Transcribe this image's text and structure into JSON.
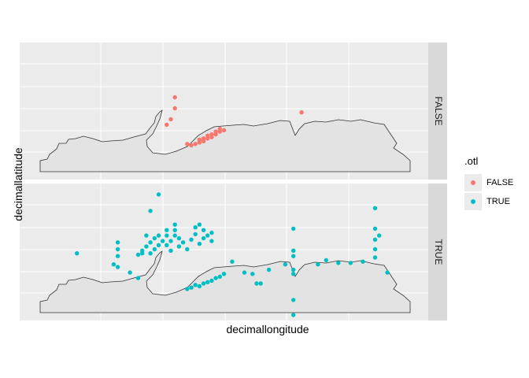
{
  "chart_data": {
    "type": "scatter",
    "title": "",
    "xlabel": "decimallongitude",
    "ylabel": "decimallatitude",
    "xlim": [
      0,
      100
    ],
    "ylim": [
      0,
      100
    ],
    "x_ticks_shown": false,
    "y_ticks_shown": false,
    "grid": true,
    "facet_by": ".otl",
    "legend_position": "right",
    "legend": {
      "title": ".otl",
      "entries": [
        {
          "label": "FALSE",
          "color": "#F8766D"
        },
        {
          "label": "TRUE",
          "color": "#00BFC4"
        }
      ]
    },
    "panels": [
      {
        "strip": "FALSE",
        "color": "#F8766D",
        "points": [
          {
            "x": 38,
            "y": 60
          },
          {
            "x": 38,
            "y": 52
          },
          {
            "x": 37,
            "y": 44
          },
          {
            "x": 36,
            "y": 40
          },
          {
            "x": 69,
            "y": 49
          },
          {
            "x": 41,
            "y": 26
          },
          {
            "x": 42,
            "y": 25
          },
          {
            "x": 43,
            "y": 26
          },
          {
            "x": 44,
            "y": 27
          },
          {
            "x": 44,
            "y": 29
          },
          {
            "x": 45,
            "y": 28
          },
          {
            "x": 45,
            "y": 30
          },
          {
            "x": 46,
            "y": 30
          },
          {
            "x": 46,
            "y": 32
          },
          {
            "x": 47,
            "y": 31
          },
          {
            "x": 47,
            "y": 33
          },
          {
            "x": 48,
            "y": 33
          },
          {
            "x": 48,
            "y": 35
          },
          {
            "x": 49,
            "y": 35
          },
          {
            "x": 49,
            "y": 37
          },
          {
            "x": 50,
            "y": 36
          }
        ]
      },
      {
        "strip": "TRUE",
        "color": "#00BFC4",
        "points": [
          {
            "x": 34,
            "y": 92
          },
          {
            "x": 32,
            "y": 80
          },
          {
            "x": 31,
            "y": 62
          },
          {
            "x": 32,
            "y": 57
          },
          {
            "x": 33,
            "y": 60
          },
          {
            "x": 30,
            "y": 51
          },
          {
            "x": 31,
            "y": 54
          },
          {
            "x": 32,
            "y": 49
          },
          {
            "x": 33,
            "y": 52
          },
          {
            "x": 34,
            "y": 55
          },
          {
            "x": 35,
            "y": 58
          },
          {
            "x": 36,
            "y": 62
          },
          {
            "x": 36,
            "y": 55
          },
          {
            "x": 37,
            "y": 51
          },
          {
            "x": 37,
            "y": 58
          },
          {
            "x": 38,
            "y": 62
          },
          {
            "x": 38,
            "y": 66
          },
          {
            "x": 39,
            "y": 54
          },
          {
            "x": 39,
            "y": 60
          },
          {
            "x": 40,
            "y": 57
          },
          {
            "x": 41,
            "y": 52
          },
          {
            "x": 42,
            "y": 59
          },
          {
            "x": 43,
            "y": 63
          },
          {
            "x": 44,
            "y": 70
          },
          {
            "x": 44,
            "y": 56
          },
          {
            "x": 45,
            "y": 66
          },
          {
            "x": 45,
            "y": 60
          },
          {
            "x": 46,
            "y": 62
          },
          {
            "x": 47,
            "y": 58
          },
          {
            "x": 47,
            "y": 64
          },
          {
            "x": 43,
            "y": 68
          },
          {
            "x": 38,
            "y": 70
          },
          {
            "x": 36,
            "y": 66
          },
          {
            "x": 34,
            "y": 62
          },
          {
            "x": 29,
            "y": 48
          },
          {
            "x": 30,
            "y": 49
          },
          {
            "x": 24,
            "y": 57
          },
          {
            "x": 24,
            "y": 52
          },
          {
            "x": 24,
            "y": 47
          },
          {
            "x": 23,
            "y": 41
          },
          {
            "x": 24,
            "y": 39
          },
          {
            "x": 27,
            "y": 35
          },
          {
            "x": 29,
            "y": 31
          },
          {
            "x": 14,
            "y": 49
          },
          {
            "x": 42,
            "y": 24
          },
          {
            "x": 43,
            "y": 26
          },
          {
            "x": 44,
            "y": 25
          },
          {
            "x": 45,
            "y": 27
          },
          {
            "x": 46,
            "y": 28
          },
          {
            "x": 47,
            "y": 29
          },
          {
            "x": 48,
            "y": 31
          },
          {
            "x": 49,
            "y": 32
          },
          {
            "x": 50,
            "y": 34
          },
          {
            "x": 41,
            "y": 23
          },
          {
            "x": 52,
            "y": 43
          },
          {
            "x": 55,
            "y": 35
          },
          {
            "x": 57,
            "y": 34
          },
          {
            "x": 58,
            "y": 27
          },
          {
            "x": 59,
            "y": 27
          },
          {
            "x": 61,
            "y": 37
          },
          {
            "x": 65,
            "y": 41
          },
          {
            "x": 67,
            "y": 67
          },
          {
            "x": 67,
            "y": 51
          },
          {
            "x": 67,
            "y": 47
          },
          {
            "x": 67,
            "y": 37
          },
          {
            "x": 67,
            "y": 34
          },
          {
            "x": 67,
            "y": 15
          },
          {
            "x": 67,
            "y": 4
          },
          {
            "x": 73,
            "y": 41
          },
          {
            "x": 75,
            "y": 44
          },
          {
            "x": 78,
            "y": 42
          },
          {
            "x": 81,
            "y": 42
          },
          {
            "x": 84,
            "y": 43
          },
          {
            "x": 87,
            "y": 82
          },
          {
            "x": 87,
            "y": 67
          },
          {
            "x": 87,
            "y": 59
          },
          {
            "x": 88,
            "y": 62
          },
          {
            "x": 87,
            "y": 52
          },
          {
            "x": 87,
            "y": 46
          },
          {
            "x": 90,
            "y": 35
          }
        ]
      }
    ]
  }
}
